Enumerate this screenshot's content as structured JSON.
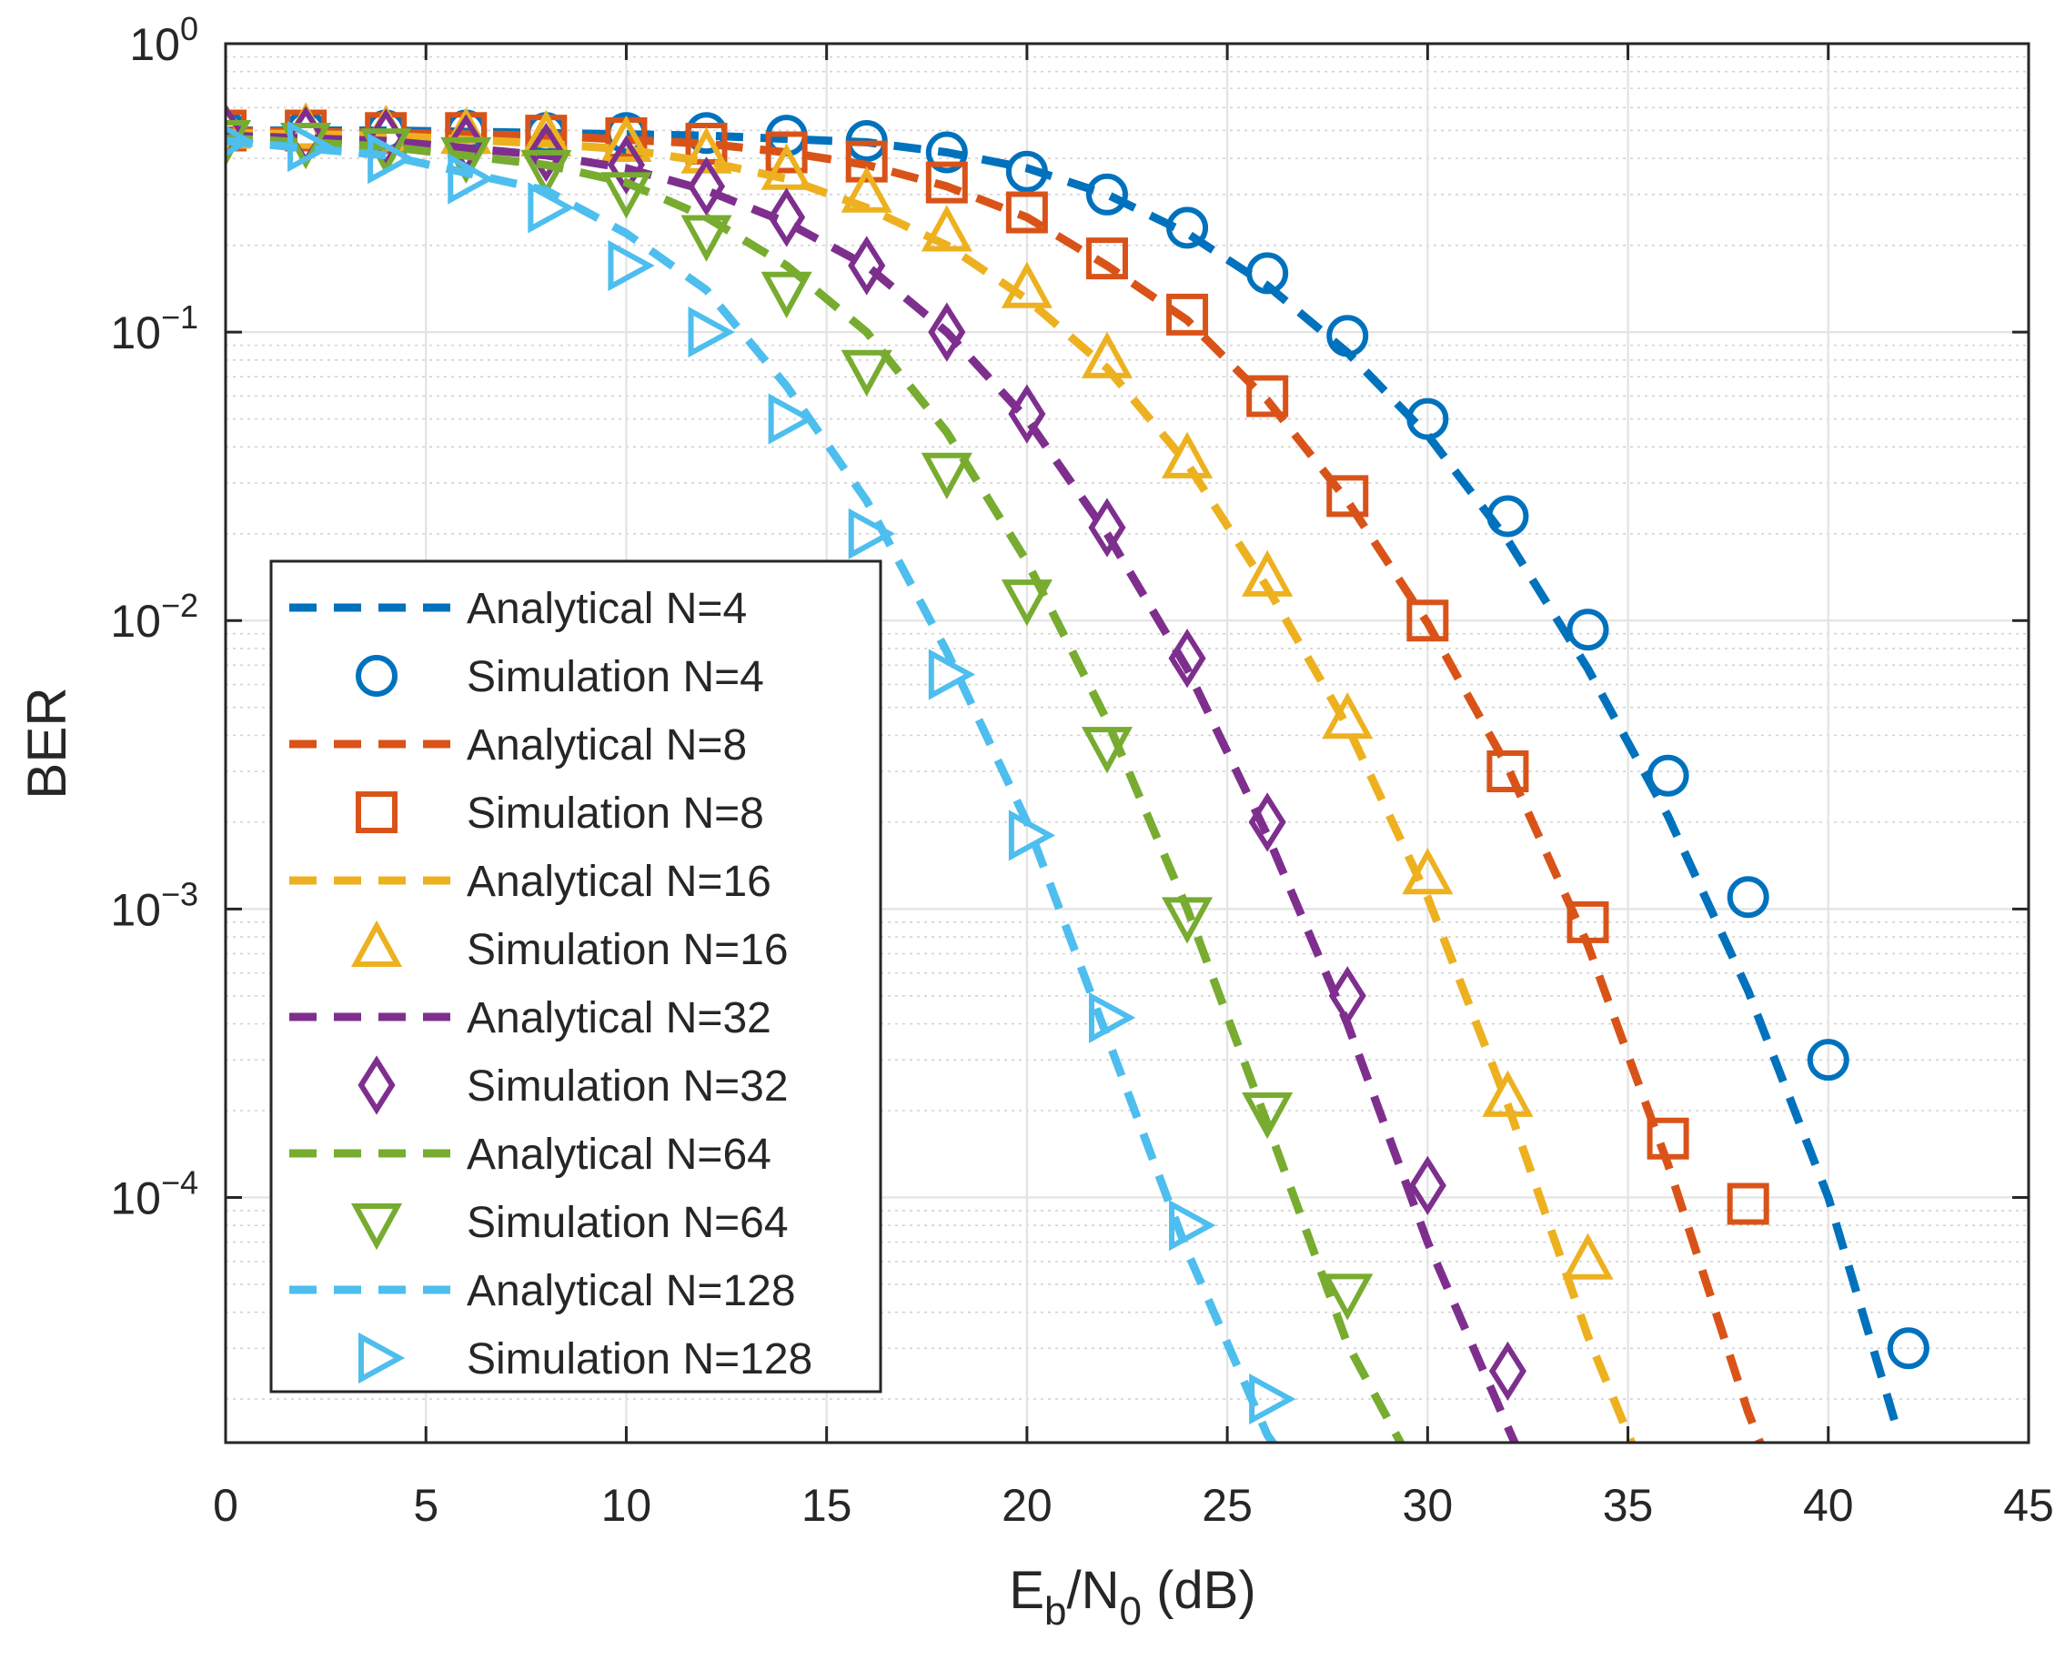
{
  "chart_data": {
    "type": "line",
    "xlabel": {
      "main": "E",
      "sub1": "b",
      "mid": "/N",
      "sub2": "0",
      "tail": " (dB)"
    },
    "ylabel": "BER",
    "xlim": [
      0,
      45
    ],
    "ylim_log10": [
      -4.85,
      0
    ],
    "yscale": "log",
    "grid": true,
    "minor_grid": true,
    "legend_position": "lower-left",
    "xticks": [
      0,
      5,
      10,
      15,
      20,
      25,
      30,
      35,
      40,
      45
    ],
    "yticks": [
      {
        "exp": 0,
        "base": "10",
        "power": "0"
      },
      {
        "exp": -1,
        "base": "10",
        "power": "−1"
      },
      {
        "exp": -2,
        "base": "10",
        "power": "−2"
      },
      {
        "exp": -3,
        "base": "10",
        "power": "−3"
      },
      {
        "exp": -4,
        "base": "10",
        "power": "−4"
      }
    ],
    "series": [
      {
        "n": "4",
        "color": "#0072BD",
        "marker": "circle",
        "analytical_label": "Analytical  N=4",
        "simulation_label": "Simulation N=4",
        "analytical": {
          "x": [
            0,
            4,
            8,
            12,
            16,
            18,
            20,
            22,
            24,
            26,
            28,
            30,
            32,
            34,
            36,
            38,
            40,
            41.7
          ],
          "y": [
            0.5,
            0.5,
            0.49,
            0.48,
            0.455,
            0.42,
            0.37,
            0.3,
            0.22,
            0.145,
            0.085,
            0.044,
            0.019,
            0.0068,
            0.0021,
            0.00052,
            0.0001,
            1.6e-05
          ]
        },
        "simulation": {
          "x": [
            0,
            2,
            4,
            6,
            8,
            10,
            12,
            14,
            16,
            18,
            20,
            22,
            24,
            26,
            28,
            30,
            32,
            34,
            36,
            38,
            40,
            42
          ],
          "y": [
            0.5,
            0.5,
            0.5,
            0.5,
            0.49,
            0.49,
            0.49,
            0.48,
            0.46,
            0.42,
            0.36,
            0.3,
            0.23,
            0.16,
            0.097,
            0.05,
            0.023,
            0.0093,
            0.0029,
            0.0011,
            0.0003,
            3e-05
          ]
        }
      },
      {
        "n": "8",
        "color": "#D95319",
        "marker": "square",
        "analytical_label": "Analytical  N=8",
        "simulation_label": "Simulation N=8",
        "analytical": {
          "x": [
            0,
            4,
            8,
            12,
            14,
            16,
            18,
            20,
            22,
            24,
            26,
            28,
            30,
            32,
            34,
            36,
            38,
            38.5
          ],
          "y": [
            0.5,
            0.49,
            0.48,
            0.45,
            0.42,
            0.38,
            0.32,
            0.25,
            0.17,
            0.11,
            0.058,
            0.026,
            0.0098,
            0.0031,
            0.00075,
            0.00013,
            1.8e-05,
            1.2e-05
          ]
        },
        "simulation": {
          "x": [
            0,
            2,
            4,
            6,
            8,
            10,
            12,
            14,
            16,
            18,
            20,
            22,
            24,
            26,
            28,
            30,
            32,
            34,
            36,
            38
          ],
          "y": [
            0.5,
            0.5,
            0.49,
            0.49,
            0.48,
            0.47,
            0.45,
            0.42,
            0.39,
            0.33,
            0.26,
            0.18,
            0.115,
            0.06,
            0.027,
            0.01,
            0.003,
            0.0009,
            0.00016,
            9.5e-05
          ]
        }
      },
      {
        "n": "16",
        "color": "#EDB120",
        "marker": "triangle-up",
        "analytical_label": "Analytical  N=16",
        "simulation_label": "Simulation N=16",
        "analytical": {
          "x": [
            0,
            4,
            8,
            10,
            12,
            14,
            16,
            18,
            20,
            22,
            24,
            26,
            28,
            30,
            32,
            34,
            35.3
          ],
          "y": [
            0.49,
            0.48,
            0.45,
            0.43,
            0.39,
            0.34,
            0.27,
            0.2,
            0.13,
            0.075,
            0.035,
            0.013,
            0.0043,
            0.0011,
            0.00021,
            3.3e-05,
            1.2e-05
          ]
        },
        "simulation": {
          "x": [
            0,
            2,
            4,
            6,
            8,
            10,
            12,
            14,
            16,
            18,
            20,
            22,
            24,
            26,
            28,
            30,
            32,
            34
          ],
          "y": [
            0.5,
            0.5,
            0.49,
            0.48,
            0.47,
            0.45,
            0.41,
            0.36,
            0.3,
            0.22,
            0.14,
            0.08,
            0.036,
            0.014,
            0.0045,
            0.0013,
            0.00022,
            6e-05
          ]
        }
      },
      {
        "n": "32",
        "color": "#7E2F8E",
        "marker": "diamond",
        "analytical_label": "Analytical  N=32",
        "simulation_label": "Simulation N=32",
        "analytical": {
          "x": [
            0,
            4,
            8,
            10,
            12,
            14,
            16,
            18,
            20,
            22,
            24,
            26,
            28,
            30,
            32,
            32.4
          ],
          "y": [
            0.48,
            0.46,
            0.41,
            0.37,
            0.31,
            0.24,
            0.17,
            0.1,
            0.05,
            0.02,
            0.0068,
            0.0018,
            0.0004,
            7e-05,
            1.6e-05,
            1.2e-05
          ]
        },
        "simulation": {
          "x": [
            0,
            2,
            4,
            6,
            8,
            10,
            12,
            14,
            16,
            18,
            20,
            22,
            24,
            26,
            28,
            30,
            32
          ],
          "y": [
            0.49,
            0.48,
            0.47,
            0.45,
            0.42,
            0.38,
            0.32,
            0.25,
            0.17,
            0.1,
            0.052,
            0.021,
            0.0074,
            0.002,
            0.0005,
            0.00011,
            2.5e-05
          ]
        }
      },
      {
        "n": "64",
        "color": "#77AC30",
        "marker": "triangle-down",
        "analytical_label": "Analytical  N=64",
        "simulation_label": "Simulation N=64",
        "analytical": {
          "x": [
            0,
            4,
            8,
            10,
            12,
            14,
            16,
            18,
            20,
            22,
            24,
            26,
            28,
            29.6
          ],
          "y": [
            0.47,
            0.44,
            0.38,
            0.33,
            0.25,
            0.17,
            0.1,
            0.045,
            0.016,
            0.0045,
            0.001,
            0.00018,
            3.1e-05,
            1.2e-05
          ]
        },
        "simulation": {
          "x": [
            0,
            2,
            4,
            6,
            8,
            10,
            12,
            14,
            16,
            18,
            20,
            22,
            24,
            26,
            28
          ],
          "y": [
            0.47,
            0.46,
            0.44,
            0.41,
            0.37,
            0.31,
            0.22,
            0.14,
            0.075,
            0.033,
            0.012,
            0.0037,
            0.00095,
            0.0002,
            4.7e-05
          ]
        }
      },
      {
        "n": "128",
        "color": "#4DBEEE",
        "marker": "triangle-right",
        "analytical_label": "Analytical  N=128",
        "simulation_label": "Simulation N=128",
        "analytical": {
          "x": [
            0,
            4,
            8,
            10,
            12,
            14,
            16,
            18,
            20,
            22,
            24,
            26,
            26.5
          ],
          "y": [
            0.46,
            0.41,
            0.31,
            0.22,
            0.14,
            0.065,
            0.026,
            0.0078,
            0.002,
            0.00036,
            6.5e-05,
            1.5e-05,
            1.2e-05
          ]
        },
        "simulation": {
          "x": [
            0,
            2,
            4,
            6,
            8,
            10,
            12,
            14,
            16,
            18,
            20,
            22,
            24,
            26
          ],
          "y": [
            0.46,
            0.44,
            0.4,
            0.34,
            0.27,
            0.17,
            0.1,
            0.05,
            0.02,
            0.0065,
            0.0018,
            0.00042,
            8e-05,
            2e-05
          ]
        }
      }
    ]
  }
}
